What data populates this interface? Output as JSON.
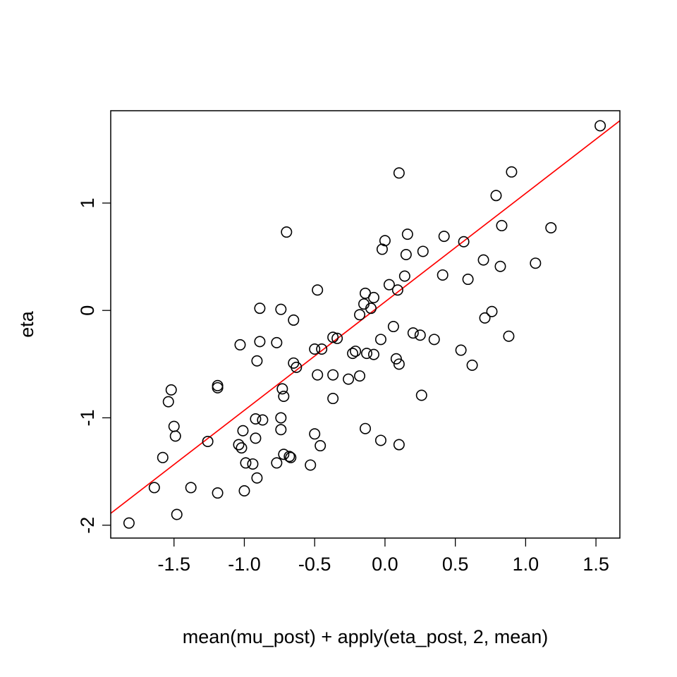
{
  "chart_data": {
    "type": "scatter",
    "title": "",
    "xlabel": "mean(mu_post) + apply(eta_post, 2, mean)",
    "ylabel": "eta",
    "xlim": [
      -1.95,
      1.67
    ],
    "ylim": [
      -2.12,
      1.86
    ],
    "x_ticks": [
      -1.5,
      -1.0,
      -0.5,
      0.0,
      0.5,
      1.0,
      1.5
    ],
    "x_tick_labels": [
      "-1.5",
      "-1.0",
      "-0.5",
      "0.0",
      "0.5",
      "1.0",
      "1.5"
    ],
    "y_ticks": [
      -2,
      -1,
      0,
      1
    ],
    "y_tick_labels": [
      "-2",
      "-1",
      "0",
      "1"
    ],
    "grid": false,
    "legend": "none",
    "series_color": "#000000",
    "fit_line_color": "#ff0000",
    "fit_line": {
      "intercept": 0.08,
      "slope": 1.01
    },
    "points": [
      {
        "x": 1.53,
        "y": 1.72
      },
      {
        "x": 0.9,
        "y": 1.29
      },
      {
        "x": 0.1,
        "y": 1.28
      },
      {
        "x": 0.79,
        "y": 1.07
      },
      {
        "x": 0.83,
        "y": 0.79
      },
      {
        "x": 1.18,
        "y": 0.77
      },
      {
        "x": -0.7,
        "y": 0.73
      },
      {
        "x": 0.16,
        "y": 0.71
      },
      {
        "x": 0.42,
        "y": 0.69
      },
      {
        "x": 0.0,
        "y": 0.65
      },
      {
        "x": 0.56,
        "y": 0.64
      },
      {
        "x": -0.02,
        "y": 0.57
      },
      {
        "x": 0.27,
        "y": 0.55
      },
      {
        "x": 0.15,
        "y": 0.52
      },
      {
        "x": 0.7,
        "y": 0.47
      },
      {
        "x": 1.07,
        "y": 0.44
      },
      {
        "x": 0.82,
        "y": 0.41
      },
      {
        "x": 0.41,
        "y": 0.33
      },
      {
        "x": 0.14,
        "y": 0.32
      },
      {
        "x": 0.59,
        "y": 0.29
      },
      {
        "x": 0.03,
        "y": 0.24
      },
      {
        "x": 0.09,
        "y": 0.19
      },
      {
        "x": -0.48,
        "y": 0.19
      },
      {
        "x": -0.14,
        "y": 0.16
      },
      {
        "x": -0.08,
        "y": 0.12
      },
      {
        "x": -0.15,
        "y": 0.06
      },
      {
        "x": -0.1,
        "y": 0.02
      },
      {
        "x": -0.89,
        "y": 0.02
      },
      {
        "x": -0.74,
        "y": 0.01
      },
      {
        "x": 0.76,
        "y": -0.01
      },
      {
        "x": -0.18,
        "y": -0.04
      },
      {
        "x": 0.71,
        "y": -0.07
      },
      {
        "x": -0.65,
        "y": -0.09
      },
      {
        "x": 0.06,
        "y": -0.15
      },
      {
        "x": 0.2,
        "y": -0.21
      },
      {
        "x": 0.25,
        "y": -0.23
      },
      {
        "x": 0.88,
        "y": -0.24
      },
      {
        "x": -0.37,
        "y": -0.25
      },
      {
        "x": -0.34,
        "y": -0.26
      },
      {
        "x": 0.35,
        "y": -0.27
      },
      {
        "x": -0.03,
        "y": -0.27
      },
      {
        "x": -0.89,
        "y": -0.29
      },
      {
        "x": -0.77,
        "y": -0.3
      },
      {
        "x": -1.03,
        "y": -0.32
      },
      {
        "x": -0.5,
        "y": -0.36
      },
      {
        "x": -0.45,
        "y": -0.36
      },
      {
        "x": 0.54,
        "y": -0.37
      },
      {
        "x": -0.21,
        "y": -0.38
      },
      {
        "x": -0.13,
        "y": -0.4
      },
      {
        "x": -0.23,
        "y": -0.4
      },
      {
        "x": -0.08,
        "y": -0.41
      },
      {
        "x": 0.08,
        "y": -0.45
      },
      {
        "x": -0.91,
        "y": -0.47
      },
      {
        "x": -0.65,
        "y": -0.49
      },
      {
        "x": 0.1,
        "y": -0.5
      },
      {
        "x": 0.62,
        "y": -0.51
      },
      {
        "x": -0.63,
        "y": -0.53
      },
      {
        "x": -0.48,
        "y": -0.6
      },
      {
        "x": -0.37,
        "y": -0.6
      },
      {
        "x": -0.18,
        "y": -0.61
      },
      {
        "x": -0.26,
        "y": -0.64
      },
      {
        "x": -1.19,
        "y": -0.7
      },
      {
        "x": -1.19,
        "y": -0.72
      },
      {
        "x": -1.52,
        "y": -0.74
      },
      {
        "x": -0.73,
        "y": -0.73
      },
      {
        "x": 0.26,
        "y": -0.79
      },
      {
        "x": -0.72,
        "y": -0.8
      },
      {
        "x": -0.37,
        "y": -0.82
      },
      {
        "x": -1.54,
        "y": -0.85
      },
      {
        "x": -0.74,
        "y": -1.0
      },
      {
        "x": -0.92,
        "y": -1.01
      },
      {
        "x": -0.87,
        "y": -1.02
      },
      {
        "x": -1.5,
        "y": -1.08
      },
      {
        "x": -0.14,
        "y": -1.1
      },
      {
        "x": -0.74,
        "y": -1.11
      },
      {
        "x": -1.01,
        "y": -1.12
      },
      {
        "x": -0.5,
        "y": -1.15
      },
      {
        "x": -1.49,
        "y": -1.17
      },
      {
        "x": -0.92,
        "y": -1.19
      },
      {
        "x": -0.03,
        "y": -1.21
      },
      {
        "x": -1.26,
        "y": -1.22
      },
      {
        "x": -1.04,
        "y": -1.25
      },
      {
        "x": 0.1,
        "y": -1.25
      },
      {
        "x": -0.46,
        "y": -1.26
      },
      {
        "x": -1.02,
        "y": -1.28
      },
      {
        "x": -0.72,
        "y": -1.34
      },
      {
        "x": -0.68,
        "y": -1.36
      },
      {
        "x": -0.67,
        "y": -1.37
      },
      {
        "x": -1.58,
        "y": -1.37
      },
      {
        "x": -0.99,
        "y": -1.42
      },
      {
        "x": -0.77,
        "y": -1.42
      },
      {
        "x": -0.94,
        "y": -1.43
      },
      {
        "x": -0.53,
        "y": -1.44
      },
      {
        "x": -0.91,
        "y": -1.56
      },
      {
        "x": -1.64,
        "y": -1.65
      },
      {
        "x": -1.38,
        "y": -1.65
      },
      {
        "x": -1.0,
        "y": -1.68
      },
      {
        "x": -1.19,
        "y": -1.7
      },
      {
        "x": -1.48,
        "y": -1.9
      },
      {
        "x": -1.82,
        "y": -1.98
      }
    ]
  }
}
